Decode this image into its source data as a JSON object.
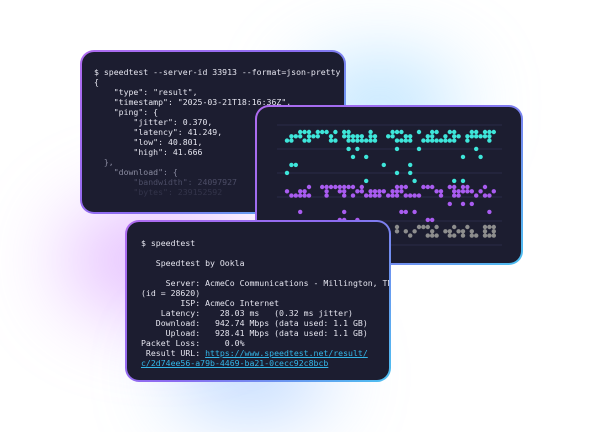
{
  "json_terminal": {
    "command": "$ speedtest --server-id 33913 --format=json-pretty",
    "lines": [
      "{",
      "    \"type\": \"result\",",
      "    \"timestamp\": \"2025-03-21T18:16:36Z\",",
      "    \"ping\": {",
      "        \"jitter\": 0.370,",
      "        \"latency\": 41.249,",
      "        \"low\": 40.801,",
      "        \"high\": 41.666",
      "  },",
      "    \"download\": {",
      "        \"bandwidth\": 24097927",
      "        \"bytes\": 239152592"
    ]
  },
  "dot_plot": {
    "colors": {
      "upper": "#3ee6da",
      "middle": "#a95cf0",
      "lower": "#8d8d8d",
      "grid": "#2a2c48"
    }
  },
  "text_terminal": {
    "command": "$ speedtest",
    "brand": "   Speedtest by Ookla",
    "server": "     Server: AcmeCo Communications - Millington, TN",
    "server_id": "(id = 28620)",
    "isp": "        ISP: AcmeCo Internet",
    "latency": "    Latency:    28.03 ms   (0.32 ms jitter)",
    "download": "   Download:   942.74 Mbps (data used: 1.1 GB)",
    "upload": "     Upload:   928.41 Mbps (data used: 1.1 GB)",
    "packet_loss": "Packet Loss:     0.0%",
    "result_label": " Result URL: ",
    "result_url_1": "https://www.speedtest.net/result/",
    "result_url_2": "c/2d74ee56-a79b-4469-ba21-0cecc92c8bcb"
  }
}
